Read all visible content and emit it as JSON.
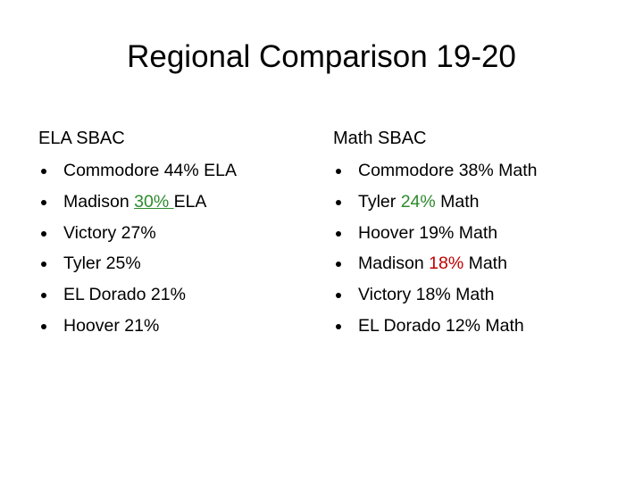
{
  "title": "Regional Comparison 19-20",
  "columns": [
    {
      "heading": "ELA SBAC",
      "items": [
        [
          {
            "text": "Commodore 44% ELA"
          }
        ],
        [
          {
            "text": "Madison "
          },
          {
            "text": "30% ",
            "color": "#2e8b2e",
            "underline": true
          },
          {
            "text": "ELA"
          }
        ],
        [
          {
            "text": "Victory 27%"
          }
        ],
        [
          {
            "text": "Tyler 25%"
          }
        ],
        [
          {
            "text": "EL Dorado 21%"
          }
        ],
        [
          {
            "text": "Hoover 21%"
          }
        ]
      ]
    },
    {
      "heading": "Math SBAC",
      "items": [
        [
          {
            "text": "Commodore 38% Math"
          }
        ],
        [
          {
            "text": "Tyler "
          },
          {
            "text": "24%",
            "color": "#2e8b2e"
          },
          {
            "text": " Math"
          }
        ],
        [
          {
            "text": "Hoover 19% Math"
          }
        ],
        [
          {
            "text": "Madison "
          },
          {
            "text": "18%",
            "color": "#c00000"
          },
          {
            "text": " Math"
          }
        ],
        [
          {
            "text": "Victory 18% Math"
          }
        ],
        [
          {
            "text": "EL Dorado 12% Math"
          }
        ]
      ]
    }
  ]
}
